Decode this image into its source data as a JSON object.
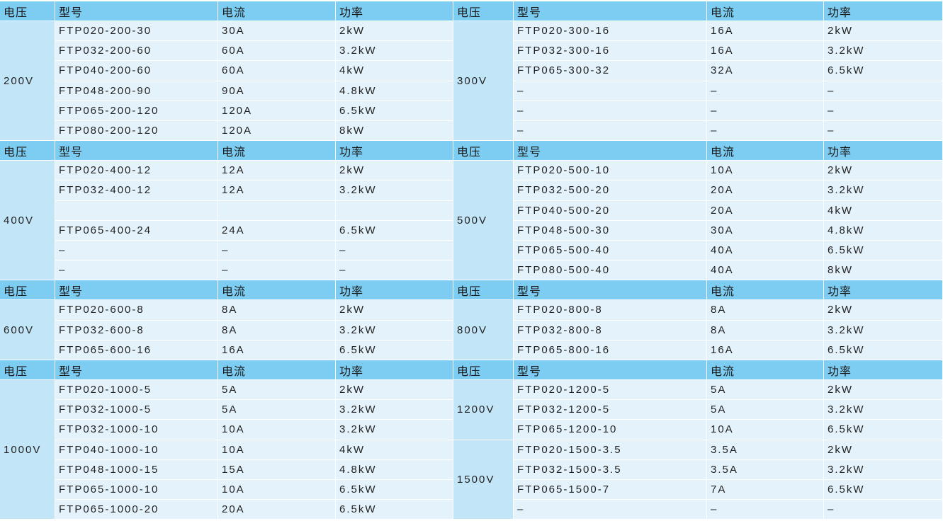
{
  "header": [
    "电压",
    "型号",
    "电流",
    "功率"
  ],
  "sections": [
    {
      "left": [
        {
          "voltage": "200V",
          "rows": [
            [
              "FTP020-200-30",
              "30A",
              "2kW"
            ],
            [
              "FTP032-200-60",
              "60A",
              "3.2kW"
            ],
            [
              "FTP040-200-60",
              "60A",
              "4kW"
            ],
            [
              "FTP048-200-90",
              "90A",
              "4.8kW"
            ],
            [
              "FTP065-200-120",
              "120A",
              "6.5kW"
            ],
            [
              "FTP080-200-120",
              "120A",
              "8kW"
            ]
          ]
        }
      ],
      "right": [
        {
          "voltage": "300V",
          "rows": [
            [
              "FTP020-300-16",
              "16A",
              "2kW"
            ],
            [
              "FTP032-300-16",
              "16A",
              "3.2kW"
            ],
            [
              "FTP065-300-32",
              "32A",
              "6.5kW"
            ],
            [
              "–",
              "–",
              "–"
            ],
            [
              "–",
              "–",
              "–"
            ],
            [
              "–",
              "–",
              "–"
            ]
          ]
        }
      ]
    },
    {
      "left": [
        {
          "voltage": "400V",
          "rows": [
            [
              "FTP020-400-12",
              "12A",
              "2kW"
            ],
            [
              "FTP032-400-12",
              "12A",
              "3.2kW"
            ],
            null,
            [
              "FTP065-400-24",
              "24A",
              "6.5kW"
            ],
            [
              "–",
              "–",
              "–"
            ],
            [
              "–",
              "–",
              "–"
            ]
          ]
        }
      ],
      "right": [
        {
          "voltage": "500V",
          "rows": [
            [
              "FTP020-500-10",
              "10A",
              "2kW"
            ],
            [
              "FTP032-500-20",
              "20A",
              "3.2kW"
            ],
            [
              "FTP040-500-20",
              "20A",
              "4kW"
            ],
            [
              "FTP048-500-30",
              "30A",
              "4.8kW"
            ],
            [
              "FTP065-500-40",
              "40A",
              "6.5kW"
            ],
            [
              "FTP080-500-40",
              "40A",
              "8kW"
            ]
          ]
        }
      ]
    },
    {
      "left": [
        {
          "voltage": "600V",
          "rows": [
            [
              "FTP020-600-8",
              "8A",
              "2kW"
            ],
            [
              "FTP032-600-8",
              "8A",
              "3.2kW"
            ],
            [
              "FTP065-600-16",
              "16A",
              "6.5kW"
            ]
          ]
        }
      ],
      "right": [
        {
          "voltage": "800V",
          "rows": [
            [
              "FTP020-800-8",
              "8A",
              "2kW"
            ],
            [
              "FTP032-800-8",
              "8A",
              "3.2kW"
            ],
            [
              "FTP065-800-16",
              "16A",
              "6.5kW"
            ]
          ]
        }
      ]
    },
    {
      "left": [
        {
          "voltage": "1000V",
          "rows": [
            [
              "FTP020-1000-5",
              "5A",
              "2kW"
            ],
            [
              "FTP032-1000-5",
              "5A",
              "3.2kW"
            ],
            [
              "FTP032-1000-10",
              "10A",
              "3.2kW"
            ],
            [
              "FTP040-1000-10",
              "10A",
              "4kW"
            ],
            [
              "FTP048-1000-15",
              "15A",
              "4.8kW"
            ],
            [
              "FTP065-1000-10",
              "10A",
              "6.5kW"
            ],
            [
              "FTP065-1000-20",
              "20A",
              "6.5kW"
            ]
          ]
        }
      ],
      "right": [
        {
          "voltage": "1200V",
          "rows": [
            [
              "FTP020-1200-5",
              "5A",
              "2kW"
            ],
            [
              "FTP032-1200-5",
              "5A",
              "3.2kW"
            ],
            [
              "FTP065-1200-10",
              "10A",
              "6.5kW"
            ]
          ]
        },
        {
          "voltage": "1500V",
          "rows": [
            [
              "FTP020-1500-3.5",
              "3.5A",
              "2kW"
            ],
            [
              "FTP032-1500-3.5",
              "3.5A",
              "3.2kW"
            ],
            [
              "FTP065-1500-7",
              "7A",
              "6.5kW"
            ],
            [
              "–",
              "–",
              "–"
            ]
          ]
        }
      ]
    }
  ]
}
